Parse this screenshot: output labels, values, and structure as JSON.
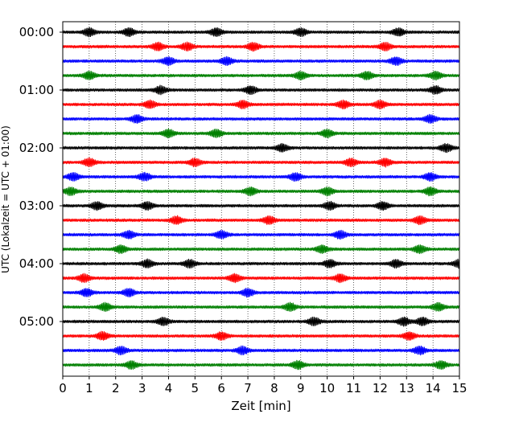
{
  "chart_data": {
    "type": "line",
    "title": "",
    "xlabel": "Zeit  [min]",
    "ylabel": "UTC (Lokalzeit = UTC + 01:00)",
    "xlim": [
      0,
      15
    ],
    "x_ticks": [
      "0",
      "1",
      "2",
      "3",
      "4",
      "5",
      "6",
      "7",
      "8",
      "9",
      "10",
      "11",
      "12",
      "13",
      "14",
      "15"
    ],
    "y_tick_labels": [
      "00:00",
      "01:00",
      "02:00",
      "03:00",
      "04:00",
      "05:00"
    ],
    "grid": "vertical dotted at each minute",
    "trace_interval_min": 15,
    "trace_count": 24,
    "trace_color_cycle": [
      "#000000",
      "#ff0000",
      "#0000ff",
      "#008000"
    ],
    "traces": [
      {
        "start": "00:00",
        "color": "#000000",
        "bursts_min": [
          1.0,
          2.5,
          5.8,
          9.0,
          12.7
        ]
      },
      {
        "start": "00:15",
        "color": "#ff0000",
        "bursts_min": [
          3.6,
          4.7,
          7.2,
          12.2
        ]
      },
      {
        "start": "00:30",
        "color": "#0000ff",
        "bursts_min": [
          4.0,
          6.2,
          12.6
        ]
      },
      {
        "start": "00:45",
        "color": "#008000",
        "bursts_min": [
          1.0,
          9.0,
          11.5,
          14.1
        ]
      },
      {
        "start": "01:00",
        "color": "#000000",
        "bursts_min": [
          3.7,
          7.1,
          14.1
        ]
      },
      {
        "start": "01:15",
        "color": "#ff0000",
        "bursts_min": [
          3.3,
          6.8,
          10.6,
          12.0
        ]
      },
      {
        "start": "01:30",
        "color": "#0000ff",
        "bursts_min": [
          2.8,
          13.9
        ]
      },
      {
        "start": "01:45",
        "color": "#008000",
        "bursts_min": [
          4.0,
          5.8,
          10.0
        ]
      },
      {
        "start": "02:00",
        "color": "#000000",
        "bursts_min": [
          8.3,
          14.5
        ]
      },
      {
        "start": "02:15",
        "color": "#ff0000",
        "bursts_min": [
          1.0,
          5.0,
          10.9,
          12.2
        ]
      },
      {
        "start": "02:30",
        "color": "#0000ff",
        "bursts_min": [
          0.4,
          3.1,
          8.8,
          13.9
        ]
      },
      {
        "start": "02:45",
        "color": "#008000",
        "bursts_min": [
          0.3,
          7.1,
          10.0,
          13.9
        ]
      },
      {
        "start": "03:00",
        "color": "#000000",
        "bursts_min": [
          1.3,
          3.2,
          10.1,
          12.1
        ]
      },
      {
        "start": "03:15",
        "color": "#ff0000",
        "bursts_min": [
          4.3,
          7.8,
          13.5
        ]
      },
      {
        "start": "03:30",
        "color": "#0000ff",
        "bursts_min": [
          2.5,
          6.0,
          10.5
        ]
      },
      {
        "start": "03:45",
        "color": "#008000",
        "bursts_min": [
          2.2,
          9.8,
          13.5
        ]
      },
      {
        "start": "04:00",
        "color": "#000000",
        "bursts_min": [
          3.2,
          4.8,
          10.1,
          12.6,
          15.0
        ]
      },
      {
        "start": "04:15",
        "color": "#ff0000",
        "bursts_min": [
          0.8,
          6.5,
          10.5
        ]
      },
      {
        "start": "04:30",
        "color": "#0000ff",
        "bursts_min": [
          0.9,
          2.5,
          7.0
        ]
      },
      {
        "start": "04:45",
        "color": "#008000",
        "bursts_min": [
          1.6,
          8.6,
          14.2
        ]
      },
      {
        "start": "05:00",
        "color": "#000000",
        "bursts_min": [
          3.8,
          9.5,
          12.9,
          13.6
        ]
      },
      {
        "start": "05:15",
        "color": "#ff0000",
        "bursts_min": [
          1.5,
          6.0,
          13.1
        ]
      },
      {
        "start": "05:30",
        "color": "#0000ff",
        "bursts_min": [
          2.2,
          6.8,
          13.5
        ]
      },
      {
        "start": "05:45",
        "color": "#008000",
        "bursts_min": [
          2.6,
          8.9,
          14.3
        ]
      }
    ]
  }
}
